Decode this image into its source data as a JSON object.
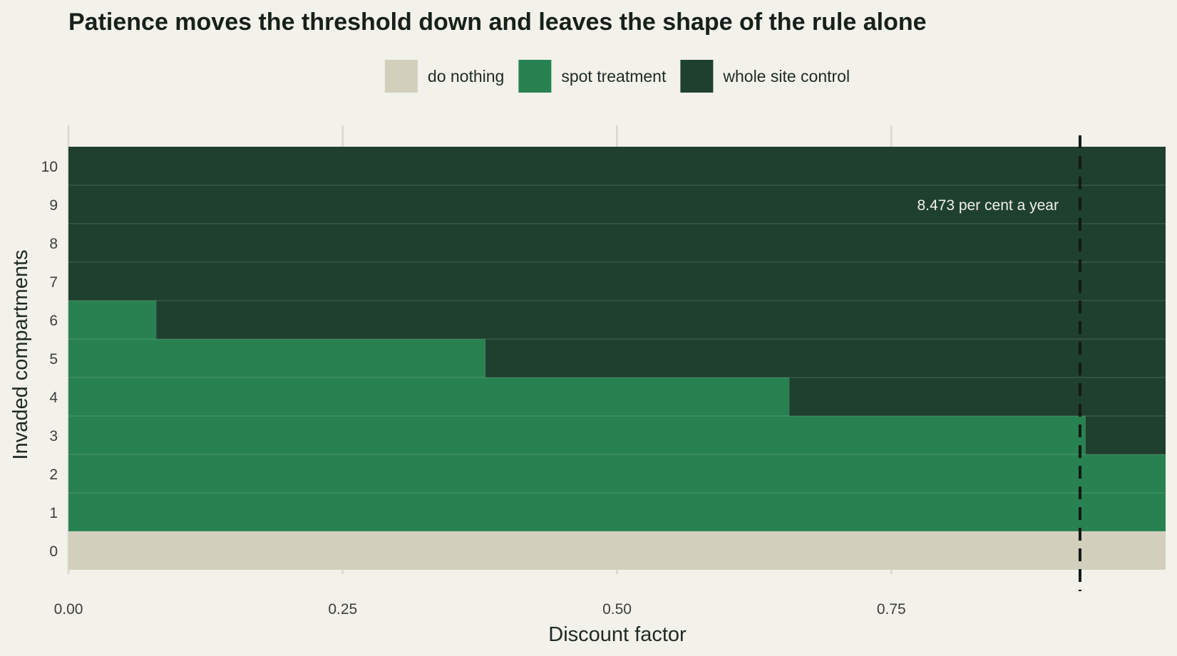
{
  "chart_data": {
    "type": "heatmap",
    "title": "Patience moves the threshold down and leaves the shape of the rule alone",
    "xlabel": "Discount factor",
    "ylabel": "Invaded compartments",
    "xlim": [
      0.0,
      1.0
    ],
    "x_ticks": [
      "0.00",
      "0.25",
      "0.50",
      "0.75"
    ],
    "x_tick_values": [
      0.0,
      0.25,
      0.5,
      0.75
    ],
    "y_categories": [
      "0",
      "1",
      "2",
      "3",
      "4",
      "5",
      "6",
      "7",
      "8",
      "9",
      "10"
    ],
    "legend": {
      "placement": "top-center",
      "items": [
        {
          "label": "do nothing",
          "color": "#d2d0bd"
        },
        {
          "label": "spot treatment",
          "color": "#288151"
        },
        {
          "label": "whole site control",
          "color": "#1f402e"
        }
      ]
    },
    "policy_by_compartments": [
      {
        "compartments": 0,
        "spot_until": null,
        "rule": "do nothing at all discount factors"
      },
      {
        "compartments": 1,
        "spot_until": 1.0
      },
      {
        "compartments": 2,
        "spot_until": 1.0
      },
      {
        "compartments": 3,
        "spot_until": 0.927
      },
      {
        "compartments": 4,
        "spot_until": 0.657
      },
      {
        "compartments": 5,
        "spot_until": 0.38
      },
      {
        "compartments": 6,
        "spot_until": 0.08
      },
      {
        "compartments": 7,
        "spot_until": 0.0
      },
      {
        "compartments": 8,
        "spot_until": 0.0
      },
      {
        "compartments": 9,
        "spot_until": 0.0
      },
      {
        "compartments": 10,
        "spot_until": 0.0
      }
    ],
    "reference_line": {
      "x": 0.922,
      "style": "dashed",
      "label": "8.473 per cent a year"
    },
    "grid": {
      "vertical": true,
      "horizontal": false
    }
  }
}
